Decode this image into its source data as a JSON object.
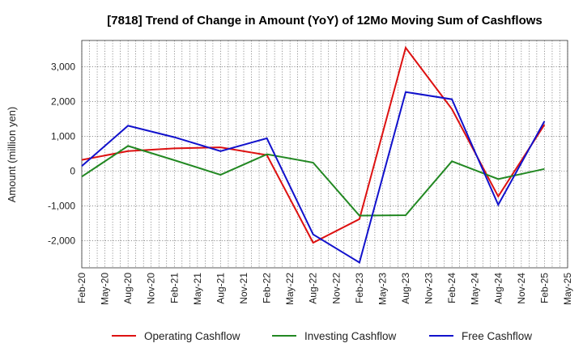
{
  "chart_data": {
    "type": "line",
    "title": "[7818]  Trend of Change in Amount (YoY) of 12Mo Moving Sum of Cashflows",
    "xlabel": "",
    "ylabel": "Amount (million yen)",
    "ylim": [
      -2780,
      3750
    ],
    "yticks": [
      3000,
      2000,
      1000,
      0,
      -1000,
      -2000
    ],
    "ytick_labels": [
      "3,000",
      "2,000",
      "1,000",
      "0",
      "-1,000",
      "-2,000"
    ],
    "categories": [
      "Feb-20",
      "May-20",
      "Aug-20",
      "Nov-20",
      "Feb-21",
      "May-21",
      "Aug-21",
      "Nov-21",
      "Feb-22",
      "May-22",
      "Aug-22",
      "Nov-22",
      "Feb-23",
      "May-23",
      "Aug-23",
      "Nov-23",
      "Feb-24",
      "May-24",
      "Aug-24",
      "Nov-24",
      "Feb-25",
      "May-25"
    ],
    "grid": true,
    "legend_position": "bottom",
    "series": [
      {
        "name": "Operating Cashflow",
        "color": "#dd1111",
        "points": [
          [
            0,
            320
          ],
          [
            2,
            570
          ],
          [
            4,
            650
          ],
          [
            6,
            680
          ],
          [
            8,
            460
          ],
          [
            10,
            -2060
          ],
          [
            12,
            -1380
          ],
          [
            14,
            3540
          ],
          [
            16,
            1780
          ],
          [
            18,
            -730
          ],
          [
            20,
            1330
          ]
        ]
      },
      {
        "name": "Investing Cashflow",
        "color": "#228822",
        "points": [
          [
            0,
            -160
          ],
          [
            2,
            720
          ],
          [
            4,
            310
          ],
          [
            6,
            -110
          ],
          [
            8,
            480
          ],
          [
            10,
            240
          ],
          [
            12,
            -1280
          ],
          [
            14,
            -1270
          ],
          [
            16,
            280
          ],
          [
            18,
            -230
          ],
          [
            20,
            60
          ]
        ]
      },
      {
        "name": "Free Cashflow",
        "color": "#1111cc",
        "points": [
          [
            0,
            140
          ],
          [
            2,
            1300
          ],
          [
            4,
            970
          ],
          [
            6,
            570
          ],
          [
            8,
            940
          ],
          [
            10,
            -1820
          ],
          [
            12,
            -2630
          ],
          [
            14,
            2270
          ],
          [
            16,
            2060
          ],
          [
            18,
            -970
          ],
          [
            20,
            1430
          ]
        ]
      }
    ]
  }
}
